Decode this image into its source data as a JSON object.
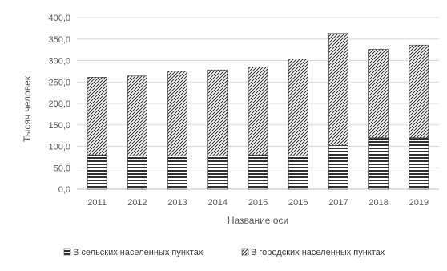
{
  "chart_data": {
    "type": "bar",
    "stacked": true,
    "categories": [
      "2011",
      "2012",
      "2013",
      "2014",
      "2015",
      "2016",
      "2017",
      "2018",
      "2019"
    ],
    "series": [
      {
        "name": "В сельских населенных пунктах",
        "pattern": "horizontal-stripes",
        "values": [
          80,
          78,
          78,
          78,
          80,
          78,
          102,
          120,
          120
        ]
      },
      {
        "name": "В городских населенных пунктах",
        "pattern": "diagonal-hatch",
        "values": [
          181,
          186,
          197,
          200,
          205,
          226,
          261,
          206,
          216
        ]
      }
    ],
    "title": "",
    "xlabel": "Название оси",
    "ylabel": "Тысяч человек",
    "ylim": [
      0,
      400
    ],
    "yticks": [
      "0,0",
      "50,0",
      "100,0",
      "150,0",
      "200,0",
      "250,0",
      "300,0",
      "350,0",
      "400,0"
    ],
    "grid": true,
    "legend_position": "bottom"
  },
  "colors": {
    "grid": "#d9d9d9",
    "bar_outline": "#404040",
    "pattern_ink": "#262626"
  }
}
